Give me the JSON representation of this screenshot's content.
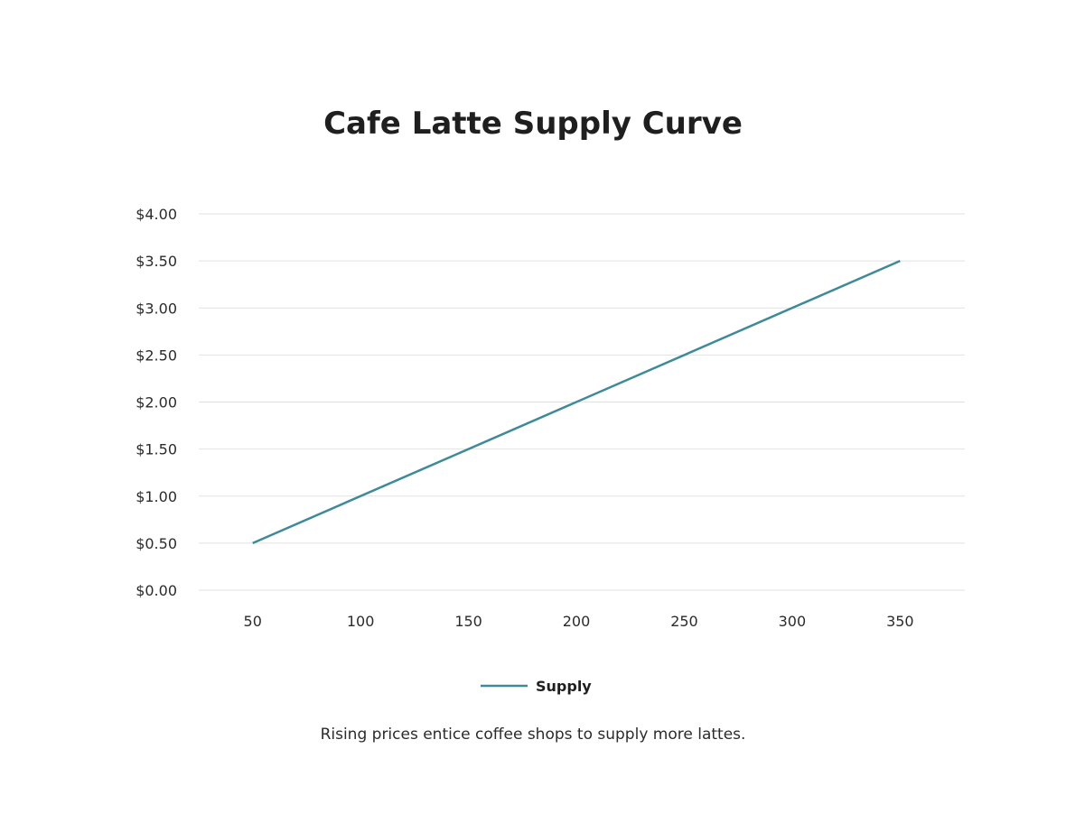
{
  "chart_data": {
    "type": "line",
    "title": "Cafe Latte Supply Curve",
    "xlabel": "",
    "ylabel": "",
    "x_ticks": [
      50,
      100,
      150,
      200,
      250,
      300,
      350
    ],
    "y_ticks": [
      "$0.00",
      "$0.50",
      "$1.00",
      "$1.50",
      "$2.00",
      "$2.50",
      "$3.00",
      "$3.50",
      "$4.00"
    ],
    "xlim": [
      25,
      380
    ],
    "ylim": [
      0,
      4
    ],
    "grid": "horizontal",
    "legend_position": "bottom-center",
    "series": [
      {
        "name": "Supply",
        "color": "#3e8a99",
        "x": [
          50,
          350
        ],
        "y": [
          0.5,
          3.5
        ]
      }
    ],
    "caption": "Rising prices entice coffee shops to supply more lattes."
  }
}
